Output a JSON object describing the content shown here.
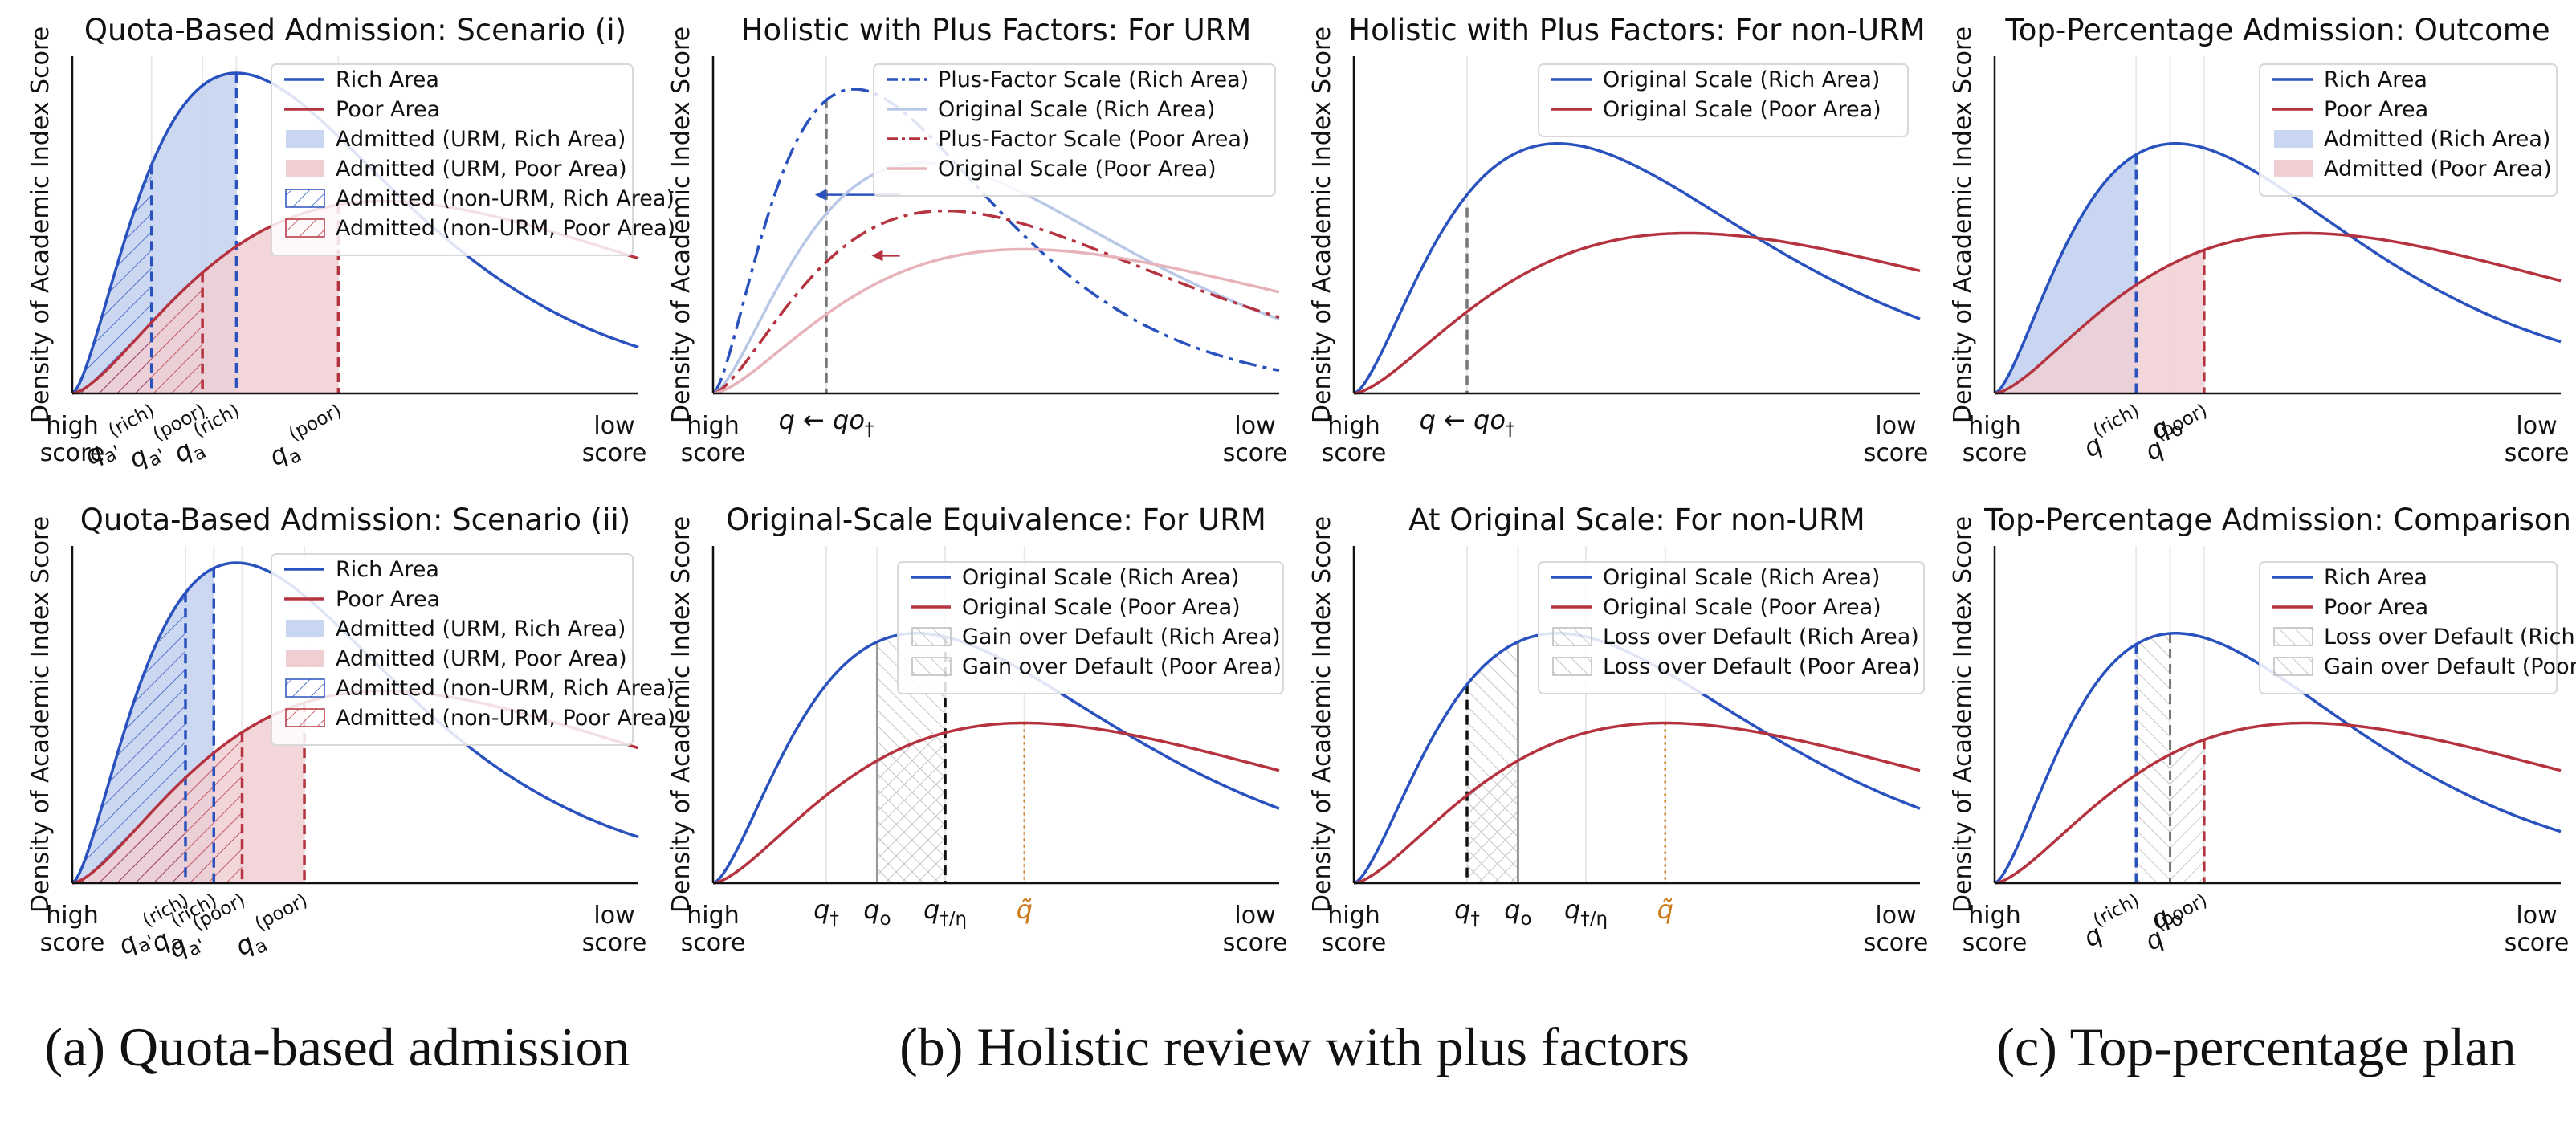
{
  "colors": {
    "rich": "#2a52be",
    "poor": "#b5323f",
    "rich_light": "#b9c8e6",
    "poor_light": "#e7b3ba",
    "rich_fill": "#c9d6f1",
    "poor_fill": "#f0cfd3",
    "ref": "#777777",
    "orange": "#cc7a1a"
  },
  "captions": {
    "a": "(a) Quota-based admission",
    "b": "(b) Holistic review with plus factors",
    "c": "(c) Top-percentage plan"
  },
  "chart_data": [
    {
      "type": "area",
      "title": "Quota-Based Admission: Scenario (i)",
      "ylabel": "Density of Academic Index Score",
      "x_end_labels": {
        "left": [
          "high",
          "score"
        ],
        "right": [
          "low",
          "score"
        ]
      },
      "series": [
        {
          "name": "Rich Area",
          "peak": 0.29,
          "height": 1.0
        },
        {
          "name": "Poor Area",
          "peak": 0.55,
          "height": 0.6
        }
      ],
      "legend": [
        "Rich Area",
        "Poor Area",
        "Admitted (URM, Rich Area)",
        "Admitted (URM, Poor Area)",
        "Admitted (non-URM, Rich Area)",
        "Admitted (non-URM, Poor Area)"
      ],
      "markers": [
        {
          "x": 0.14,
          "label": "q_{a'}^{(rich)}"
        },
        {
          "x": 0.23,
          "label": "q_{a'}^{(poor)}"
        },
        {
          "x": 0.29,
          "label": "q_a^{(rich)}"
        },
        {
          "x": 0.47,
          "label": "q_a^{(poor)}"
        }
      ]
    },
    {
      "type": "line",
      "title": "Holistic with Plus Factors: For URM",
      "ylabel": "Density of Academic Index Score",
      "x_end_labels": {
        "left": [
          "high",
          "score"
        ],
        "right": [
          "low",
          "score"
        ]
      },
      "series": [
        {
          "name": "Plus-Factor Scale (Rich Area)",
          "peak": 0.25,
          "height": 0.95
        },
        {
          "name": "Original Scale (Rich Area)",
          "peak": 0.37,
          "height": 0.72
        },
        {
          "name": "Plus-Factor Scale (Poor Area)",
          "peak": 0.41,
          "height": 0.57
        },
        {
          "name": "Original Scale (Poor Area)",
          "peak": 0.55,
          "height": 0.45
        }
      ],
      "legend": [
        "Plus-Factor Scale (Rich Area)",
        "Original Scale (Rich Area)",
        "Plus-Factor Scale (Poor Area)",
        "Original Scale (Poor Area)"
      ],
      "markers": [
        {
          "x": 0.2,
          "label": "q_† ← q_o"
        }
      ]
    },
    {
      "type": "line",
      "title": "Holistic with Plus Factors: For non-URM",
      "ylabel": "Density of Academic Index Score",
      "x_end_labels": {
        "left": [
          "high",
          "score"
        ],
        "right": [
          "low",
          "score"
        ]
      },
      "series": [
        {
          "name": "Original Scale (Rich Area)",
          "peak": 0.36,
          "height": 0.78
        },
        {
          "name": "Original Scale (Poor Area)",
          "peak": 0.59,
          "height": 0.5
        }
      ],
      "legend": [
        "Original Scale (Rich Area)",
        "Original Scale (Poor Area)"
      ],
      "markers": [
        {
          "x": 0.2,
          "label": "q_† ← q_o"
        }
      ]
    },
    {
      "type": "area",
      "title": "Top-Percentage Admission: Outcome",
      "ylabel": "Density of Academic Index Score",
      "x_end_labels": {
        "left": [
          "high",
          "score"
        ],
        "right": [
          "low",
          "score"
        ]
      },
      "series": [
        {
          "name": "Rich Area",
          "peak": 0.32,
          "height": 0.78
        },
        {
          "name": "Poor Area",
          "peak": 0.55,
          "height": 0.5
        }
      ],
      "legend": [
        "Rich Area",
        "Poor Area",
        "Admitted (Rich Area)",
        "Admitted (Poor Area)"
      ],
      "markers": [
        {
          "x": 0.25,
          "label": "q^{(rich)}"
        },
        {
          "x": 0.31,
          "label": "q_o"
        },
        {
          "x": 0.37,
          "label": "q^{(poor)}"
        }
      ]
    },
    {
      "type": "area",
      "title": "Quota-Based Admission: Scenario (ii)",
      "ylabel": "Density of Academic Index Score",
      "x_end_labels": {
        "left": [
          "high",
          "score"
        ],
        "right": [
          "low",
          "score"
        ]
      },
      "series": [
        {
          "name": "Rich Area",
          "peak": 0.29,
          "height": 1.0
        },
        {
          "name": "Poor Area",
          "peak": 0.55,
          "height": 0.6
        }
      ],
      "legend": [
        "Rich Area",
        "Poor Area",
        "Admitted (URM, Rich Area)",
        "Admitted (URM, Poor Area)",
        "Admitted (non-URM, Rich Area)",
        "Admitted (non-URM, Poor Area)"
      ],
      "markers": [
        {
          "x": 0.2,
          "label": "q_{a'}^{(rich)}"
        },
        {
          "x": 0.25,
          "label": "q_a^{(rich)}"
        },
        {
          "x": 0.3,
          "label": "q_{a'}^{(poor)}"
        },
        {
          "x": 0.41,
          "label": "q_a^{(poor)}"
        }
      ]
    },
    {
      "type": "area",
      "title": "Original-Scale Equivalence: For URM",
      "ylabel": "Density of Academic Index Score",
      "x_end_labels": {
        "left": [
          "high",
          "score"
        ],
        "right": [
          "low",
          "score"
        ]
      },
      "series": [
        {
          "name": "Original Scale (Rich Area)",
          "peak": 0.36,
          "height": 0.78
        },
        {
          "name": "Original Scale (Poor Area)",
          "peak": 0.55,
          "height": 0.5
        }
      ],
      "legend": [
        "Original Scale (Rich Area)",
        "Original Scale (Poor Area)",
        "Gain over Default (Rich Area)",
        "Gain over Default (Poor Area)"
      ],
      "markers": [
        {
          "x": 0.2,
          "label": "q_†"
        },
        {
          "x": 0.29,
          "label": "q_o"
        },
        {
          "x": 0.41,
          "label": "q_†/η"
        },
        {
          "x": 0.55,
          "label": "q̃"
        }
      ]
    },
    {
      "type": "area",
      "title": "At Original Scale: For non-URM",
      "ylabel": "Density of Academic Index Score",
      "x_end_labels": {
        "left": [
          "high",
          "score"
        ],
        "right": [
          "low",
          "score"
        ]
      },
      "series": [
        {
          "name": "Original Scale (Rich Area)",
          "peak": 0.36,
          "height": 0.78
        },
        {
          "name": "Original Scale (Poor Area)",
          "peak": 0.55,
          "height": 0.5
        }
      ],
      "legend": [
        "Original Scale (Rich Area)",
        "Original Scale (Poor Area)",
        "Loss over Default (Rich Area)",
        "Loss over Default (Poor Area)"
      ],
      "markers": [
        {
          "x": 0.2,
          "label": "q_†"
        },
        {
          "x": 0.29,
          "label": "q_o"
        },
        {
          "x": 0.41,
          "label": "q_†/η"
        },
        {
          "x": 0.55,
          "label": "q̃"
        }
      ]
    },
    {
      "type": "area",
      "title": "Top-Percentage Admission: Comparison",
      "ylabel": "Density of Academic Index Score",
      "x_end_labels": {
        "left": [
          "high",
          "score"
        ],
        "right": [
          "low",
          "score"
        ]
      },
      "series": [
        {
          "name": "Rich Area",
          "peak": 0.32,
          "height": 0.78
        },
        {
          "name": "Poor Area",
          "peak": 0.55,
          "height": 0.5
        }
      ],
      "legend": [
        "Rich Area",
        "Poor Area",
        "Loss over Default (Rich Area)",
        "Gain over Default (Poor Area)"
      ],
      "markers": [
        {
          "x": 0.25,
          "label": "q^{(rich)}"
        },
        {
          "x": 0.31,
          "label": "q_o"
        },
        {
          "x": 0.37,
          "label": "q^{(poor)}"
        }
      ]
    }
  ]
}
